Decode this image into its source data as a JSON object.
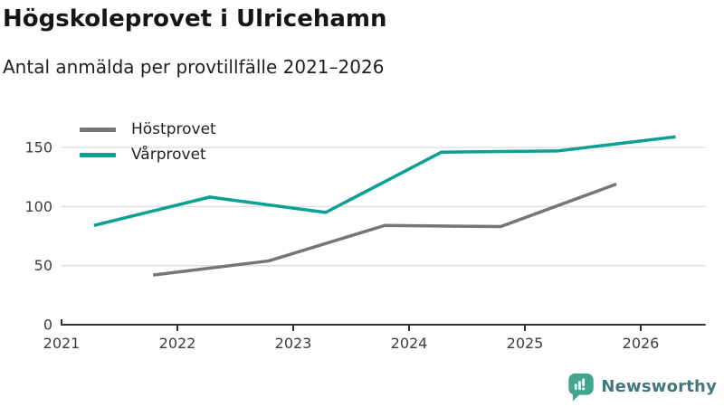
{
  "header": {
    "title": "Högskoleprovet i Ulricehamn",
    "subtitle": "Antal anmälda per provtillfälle 2021–2026"
  },
  "chart_data": {
    "type": "line",
    "title": "Högskoleprovet i Ulricehamn",
    "subtitle": "Antal anmälda per provtillfälle 2021–2026",
    "xlabel": "",
    "ylabel": "",
    "x_ticks": [
      2021,
      2022,
      2023,
      2024,
      2025,
      2026
    ],
    "y_ticks": [
      0,
      50,
      100,
      150
    ],
    "x_range": [
      2021,
      2026.56
    ],
    "y_range": [
      0,
      190
    ],
    "grid": "horizontal",
    "legend_position": "top-left",
    "series": [
      {
        "name": "Höstprovet",
        "color": "#767676",
        "x": [
          2021.79,
          2022.79,
          2023.79,
          2024.79,
          2025.79
        ],
        "values": [
          42,
          54,
          84,
          83,
          119
        ]
      },
      {
        "name": "Vårprovet",
        "color": "#0aa096",
        "x": [
          2021.28,
          2022.28,
          2023.28,
          2024.28,
          2025.28,
          2026.3
        ],
        "values": [
          84,
          108,
          95,
          146,
          147,
          159
        ]
      }
    ]
  },
  "style": {
    "gridline_color": "#dcdcdc",
    "axis_color": "#333333",
    "tick_label_color": "#3c3c3c"
  },
  "footer": {
    "brand": "Newsworthy",
    "brand_text_color": "#45767d",
    "brand_icon_color": "#43a48e"
  }
}
